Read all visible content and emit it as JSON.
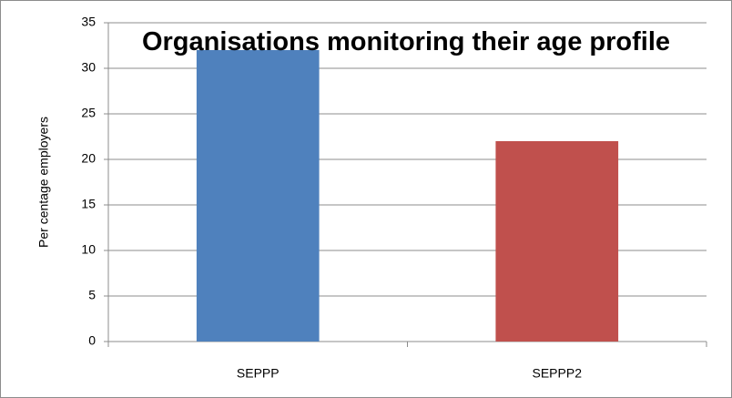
{
  "chart_data": {
    "type": "bar",
    "title": "Organisations monitoring their age profile",
    "y_label": "Per centage employers",
    "categories": [
      "SEPPP",
      "SEPPP2"
    ],
    "values": [
      32,
      22
    ],
    "colors": [
      "#4f81bd",
      "#c0504d"
    ],
    "ylim": [
      0,
      35
    ],
    "yticks": [
      0,
      5,
      10,
      15,
      20,
      25,
      30,
      35
    ],
    "grid": true
  }
}
